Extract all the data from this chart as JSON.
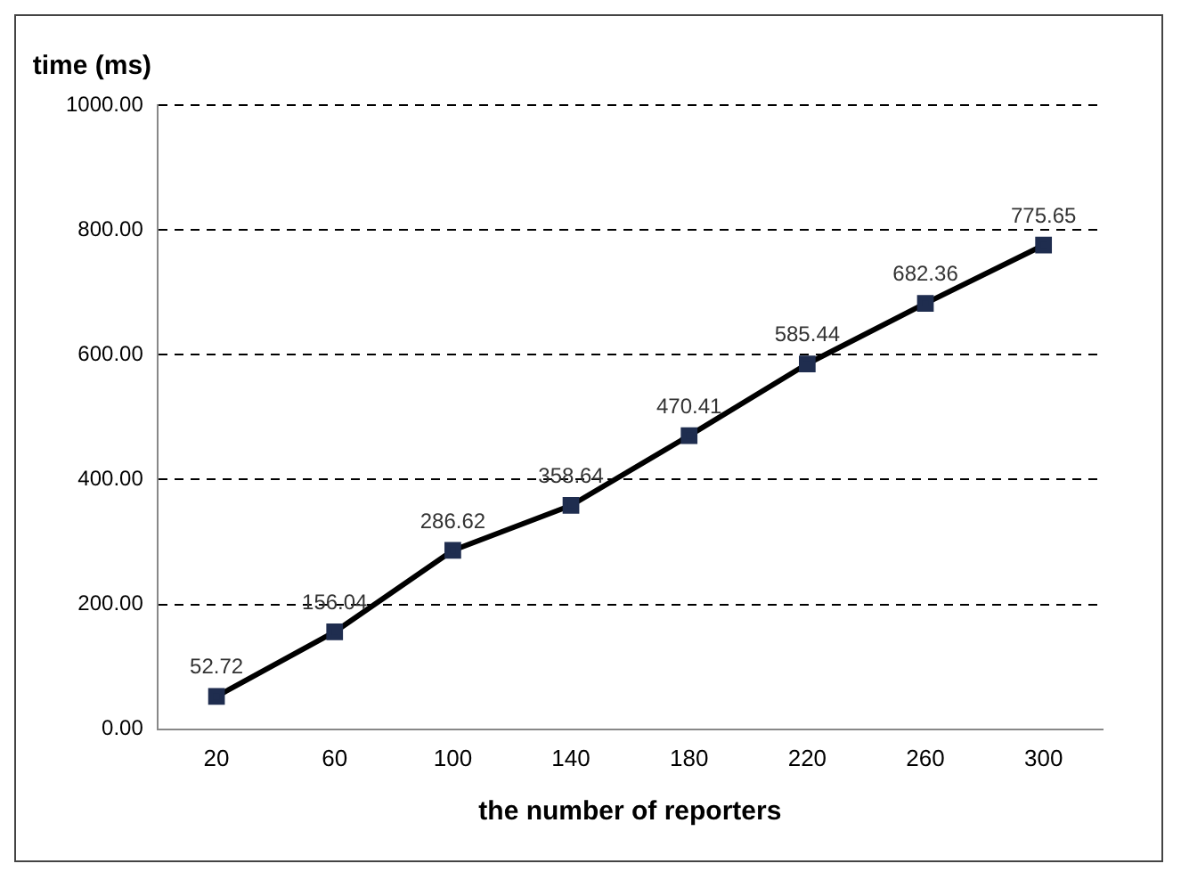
{
  "chart_data": {
    "type": "line",
    "ylabel": "time (ms)",
    "xlabel": "the number of reporters",
    "categories": [
      "20",
      "60",
      "100",
      "140",
      "180",
      "220",
      "260",
      "300"
    ],
    "series": [
      {
        "color": "#000000",
        "values": [
          52.72,
          156.04,
          286.62,
          358.64,
          470.41,
          585.44,
          682.36,
          775.65
        ]
      }
    ],
    "ylim": [
      0,
      1000
    ],
    "yticks": [
      {
        "value": 0,
        "label": "0.00"
      },
      {
        "value": 200,
        "label": "200.00"
      },
      {
        "value": 400,
        "label": "400.00"
      },
      {
        "value": 600,
        "label": "600.00"
      },
      {
        "value": 800,
        "label": "800.00"
      },
      {
        "value": 1000,
        "label": "1000.00"
      }
    ],
    "grid": "y",
    "marker": "square",
    "line_style": "solid",
    "data_labels": true,
    "legend": false
  }
}
